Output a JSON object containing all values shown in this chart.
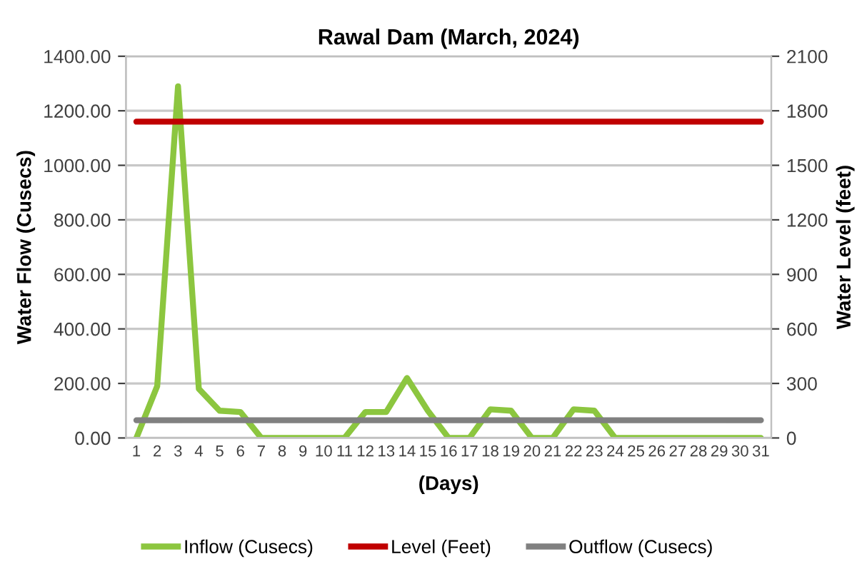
{
  "chart_data": {
    "type": "line",
    "title": "Rawal Dam (March, 2024)",
    "xlabel": "(Days)",
    "ylabel": "Water Flow (Cusecs)",
    "y2label": "Water Level (feet)",
    "categories": [
      "1",
      "2",
      "3",
      "4",
      "5",
      "6",
      "7",
      "8",
      "9",
      "10",
      "11",
      "12",
      "13",
      "14",
      "15",
      "16",
      "17",
      "18",
      "19",
      "20",
      "21",
      "22",
      "23",
      "24",
      "25",
      "26",
      "27",
      "28",
      "29",
      "30",
      "31"
    ],
    "series": [
      {
        "name": "Inflow (Cusecs)",
        "color": "#8cc63f",
        "values": [
          0,
          190,
          1290,
          180,
          100,
          95,
          0,
          0,
          0,
          0,
          0,
          95,
          95,
          220,
          100,
          0,
          0,
          105,
          100,
          0,
          0,
          105,
          100,
          0,
          0,
          0,
          0,
          0,
          0,
          0,
          0
        ]
      },
      {
        "name": "Level (Feet)",
        "color": "#c00000",
        "axis": "y2",
        "values": [
          1740,
          1740,
          1740,
          1740,
          1740,
          1740,
          1740,
          1740,
          1740,
          1740,
          1740,
          1740,
          1740,
          1740,
          1740,
          1740,
          1740,
          1740,
          1740,
          1740,
          1740,
          1740,
          1740,
          1740,
          1740,
          1740,
          1740,
          1740,
          1740,
          1740,
          1740
        ]
      },
      {
        "name": "Outflow (Cusecs)",
        "color": "#808080",
        "values": [
          65,
          65,
          65,
          65,
          65,
          65,
          65,
          65,
          65,
          65,
          65,
          65,
          65,
          65,
          65,
          65,
          65,
          65,
          65,
          65,
          65,
          65,
          65,
          65,
          65,
          65,
          65,
          65,
          65,
          65,
          65
        ]
      }
    ],
    "ylim": [
      0,
      1400
    ],
    "yticks": [
      {
        "value": 0,
        "label": "0.00"
      },
      {
        "value": 200,
        "label": "200.00"
      },
      {
        "value": 400,
        "label": "400.00"
      },
      {
        "value": 600,
        "label": "600.00"
      },
      {
        "value": 800,
        "label": "800.00"
      },
      {
        "value": 1000,
        "label": "1000.00"
      },
      {
        "value": 1200,
        "label": "1200.00"
      },
      {
        "value": 1400,
        "label": "1400.00"
      }
    ],
    "y2lim": [
      0,
      2100
    ],
    "y2ticks": [
      0,
      300,
      600,
      900,
      1200,
      1500,
      1800,
      2100
    ],
    "grid": "y",
    "legend": "bottom",
    "marker": "none",
    "line_style": "solid"
  }
}
